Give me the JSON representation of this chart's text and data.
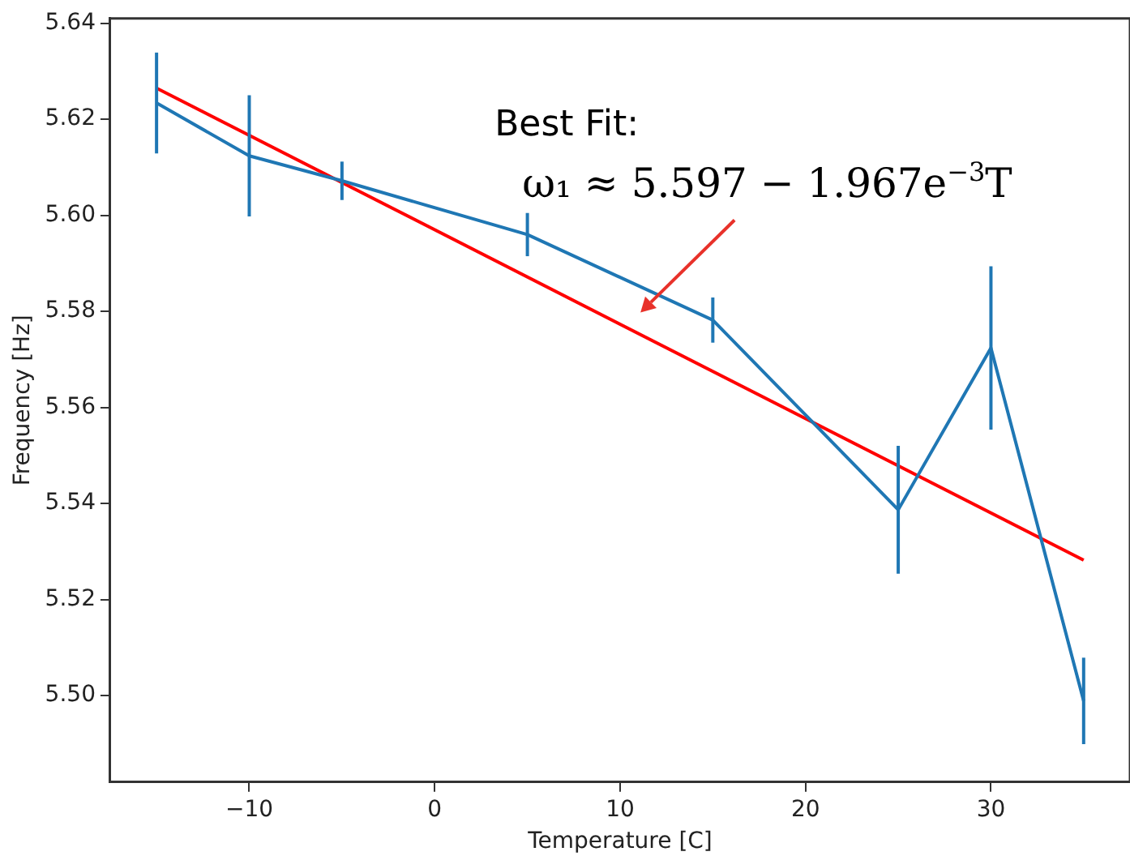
{
  "chart_data": {
    "type": "line",
    "xlabel": "Temperature [C]",
    "ylabel": "Frequency [Hz]",
    "x": [
      -15,
      -10,
      -5,
      5,
      15,
      25,
      30,
      35
    ],
    "series": [
      {
        "color": "#1f77b4",
        "values": [
          5.6234,
          5.6124,
          5.6072,
          5.596,
          5.5782,
          5.5387,
          5.5724,
          5.4989
        ],
        "errors": [
          0.0105,
          0.0126,
          0.004,
          0.0045,
          0.0047,
          0.0133,
          0.017,
          0.009
        ]
      },
      {
        "type": "line",
        "color": "#ff0000",
        "x": [
          -15,
          35
        ],
        "values": [
          5.6265,
          5.5282
        ]
      }
    ],
    "xlim": [
      -17.5,
      37.5
    ],
    "xticks": [
      {
        "value": -10,
        "label": "−10"
      },
      0,
      10,
      20,
      30
    ],
    "ylim": [
      5.482,
      5.641
    ],
    "yticks": [
      {
        "value": 5.5,
        "label": "5.50"
      },
      {
        "value": 5.52,
        "label": "5.52"
      },
      {
        "value": 5.54,
        "label": "5.54"
      },
      {
        "value": 5.56,
        "label": "5.56"
      },
      {
        "value": 5.58,
        "label": "5.58"
      },
      {
        "value": 5.6,
        "label": "5.60"
      },
      {
        "value": 5.62,
        "label": "5.62"
      },
      {
        "value": 5.64,
        "label": "5.64"
      }
    ],
    "annotations": [
      "Best Fit:\nω₁ ≈ 5.597 − 1.967e$^{−3}$T"
    ],
    "grid": false,
    "legend": false,
    "marker": "none",
    "line_style": "solid"
  }
}
